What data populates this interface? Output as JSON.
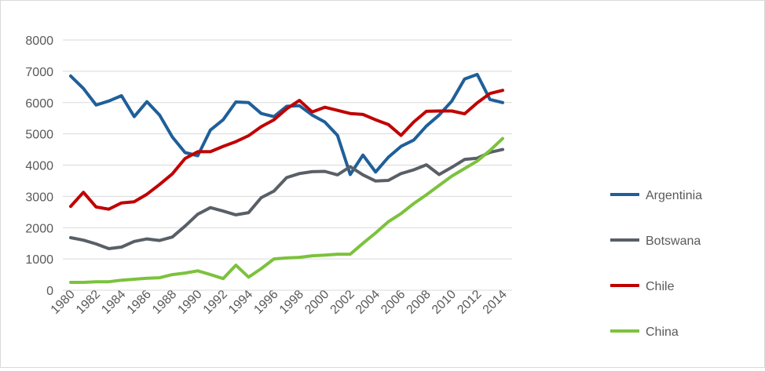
{
  "chart_data": {
    "type": "line",
    "title": "",
    "xlabel": "",
    "ylabel": "",
    "ylim": [
      0,
      8000
    ],
    "y_ticks": [
      "0",
      "1000",
      "2000",
      "3000",
      "4000",
      "5000",
      "6000",
      "7000",
      "8000"
    ],
    "grid": "horizontal",
    "legend_placement": "right",
    "x": [
      1980,
      1981,
      1982,
      1983,
      1984,
      1985,
      1986,
      1987,
      1988,
      1989,
      1990,
      1991,
      1992,
      1993,
      1994,
      1995,
      1996,
      1997,
      1998,
      1999,
      2000,
      2001,
      2002,
      2003,
      2004,
      2005,
      2006,
      2007,
      2008,
      2009,
      2010,
      2011,
      2012,
      2013,
      2014
    ],
    "x_tick_labels": [
      "1980",
      "1982",
      "1984",
      "1986",
      "1988",
      "1990",
      "1992",
      "1994",
      "1996",
      "1998",
      "2000",
      "2002",
      "2004",
      "2006",
      "2008",
      "2010",
      "2012",
      "2014"
    ],
    "series": [
      {
        "name": "Argentinia",
        "color": "#1f5f99",
        "values": [
          6850,
          6450,
          5920,
          6050,
          6220,
          5550,
          6030,
          5600,
          4900,
          4400,
          4300,
          5120,
          5450,
          6020,
          6000,
          5650,
          5550,
          5880,
          5900,
          5600,
          5380,
          4950,
          3700,
          4320,
          3780,
          4250,
          4600,
          4800,
          5250,
          5600,
          6050,
          6750,
          6900,
          6100,
          6000
        ]
      },
      {
        "name": "Botswana",
        "color": "#595f66",
        "values": [
          1680,
          1600,
          1480,
          1330,
          1380,
          1560,
          1640,
          1590,
          1700,
          2050,
          2430,
          2640,
          2530,
          2410,
          2480,
          2960,
          3170,
          3600,
          3730,
          3790,
          3800,
          3690,
          3950,
          3690,
          3490,
          3510,
          3730,
          3850,
          4010,
          3700,
          3930,
          4180,
          4220,
          4410,
          4500
        ]
      },
      {
        "name": "Chile",
        "color": "#c00000",
        "values": [
          2680,
          3130,
          2660,
          2590,
          2790,
          2830,
          3070,
          3380,
          3720,
          4210,
          4430,
          4430,
          4600,
          4750,
          4940,
          5230,
          5450,
          5800,
          6070,
          5700,
          5850,
          5750,
          5650,
          5620,
          5450,
          5300,
          4950,
          5380,
          5720,
          5730,
          5730,
          5640,
          5990,
          6290,
          6390
        ]
      },
      {
        "name": "China",
        "color": "#7cc23c",
        "values": [
          250,
          250,
          270,
          270,
          320,
          350,
          380,
          400,
          500,
          550,
          620,
          500,
          370,
          800,
          420,
          690,
          1000,
          1030,
          1050,
          1100,
          1120,
          1150,
          1150,
          1500,
          1830,
          2190,
          2450,
          2770,
          3050,
          3350,
          3650,
          3890,
          4130,
          4470,
          4850
        ]
      }
    ]
  }
}
